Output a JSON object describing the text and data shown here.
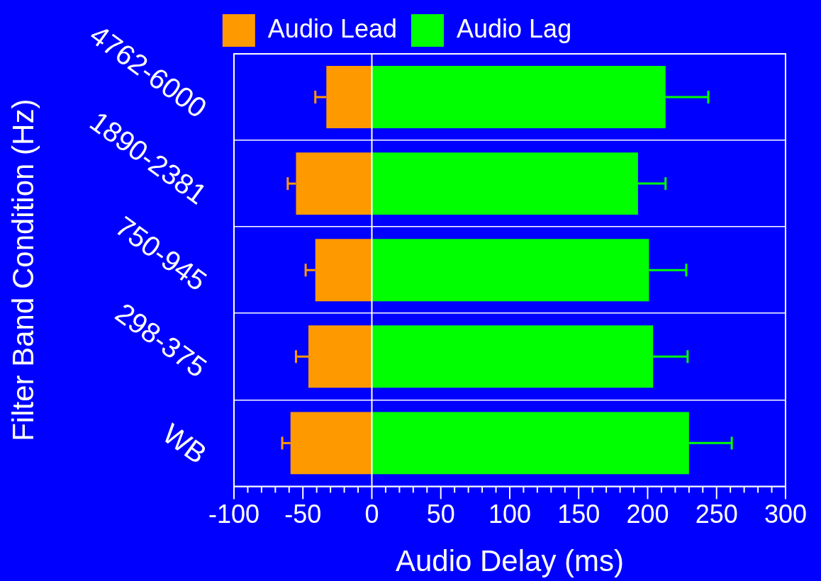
{
  "chart_data": {
    "type": "bar",
    "orientation": "horizontal",
    "stacked": true,
    "xlabel": "Audio Delay (ms)",
    "ylabel": "Filter Band Condition (Hz)",
    "categories": [
      "4762-6000",
      "1890-2381",
      "750-945",
      "298-375",
      "WB"
    ],
    "series": [
      {
        "name": "Audio Lead",
        "color": "#ff9900",
        "values": [
          -33,
          -55,
          -41,
          -46,
          -59
        ],
        "errors": [
          [
            -41,
            -33
          ],
          [
            -61,
            -55
          ],
          [
            -48,
            -41
          ],
          [
            -55,
            -46
          ],
          [
            -65,
            -59
          ]
        ]
      },
      {
        "name": "Audio Lag",
        "color": "#00ff00",
        "values": [
          213,
          193,
          201,
          204,
          230
        ],
        "errors": [
          [
            213,
            244
          ],
          [
            193,
            213
          ],
          [
            201,
            228
          ],
          [
            204,
            229
          ],
          [
            230,
            261
          ]
        ]
      }
    ],
    "xlim": [
      -100,
      300
    ],
    "xticks": [
      -100,
      {
        "value": -90,
        "label": null
      },
      {
        "value": -80,
        "label": null
      },
      {
        "value": -70,
        "label": null
      },
      {
        "value": -60,
        "label": null
      },
      -50,
      {
        "value": -40,
        "label": null
      },
      {
        "value": -30,
        "label": null
      },
      {
        "value": -20,
        "label": null
      },
      {
        "value": -10,
        "label": null
      },
      0,
      {
        "value": 10,
        "label": null
      },
      {
        "value": 20,
        "label": null
      },
      {
        "value": 30,
        "label": null
      },
      {
        "value": 40,
        "label": null
      },
      50,
      {
        "value": 60,
        "label": null
      },
      {
        "value": 70,
        "label": null
      },
      {
        "value": 80,
        "label": null
      },
      {
        "value": 90,
        "label": null
      },
      100,
      {
        "value": 110,
        "label": null
      },
      {
        "value": 120,
        "label": null
      },
      {
        "value": 130,
        "label": null
      },
      {
        "value": 140,
        "label": null
      },
      150,
      {
        "value": 160,
        "label": null
      },
      {
        "value": 170,
        "label": null
      },
      {
        "value": 180,
        "label": null
      },
      {
        "value": 190,
        "label": null
      },
      200,
      {
        "value": 210,
        "label": null
      },
      {
        "value": 220,
        "label": null
      },
      {
        "value": 230,
        "label": null
      },
      {
        "value": 240,
        "label": null
      },
      250,
      {
        "value": 260,
        "label": null
      },
      {
        "value": 270,
        "label": null
      },
      {
        "value": 280,
        "label": null
      },
      {
        "value": 290,
        "label": null
      },
      300
    ],
    "ref_lines": [
      {
        "axis": "x",
        "value": 0,
        "color": "#ffffff"
      }
    ],
    "grid": "y",
    "legend": "top"
  }
}
